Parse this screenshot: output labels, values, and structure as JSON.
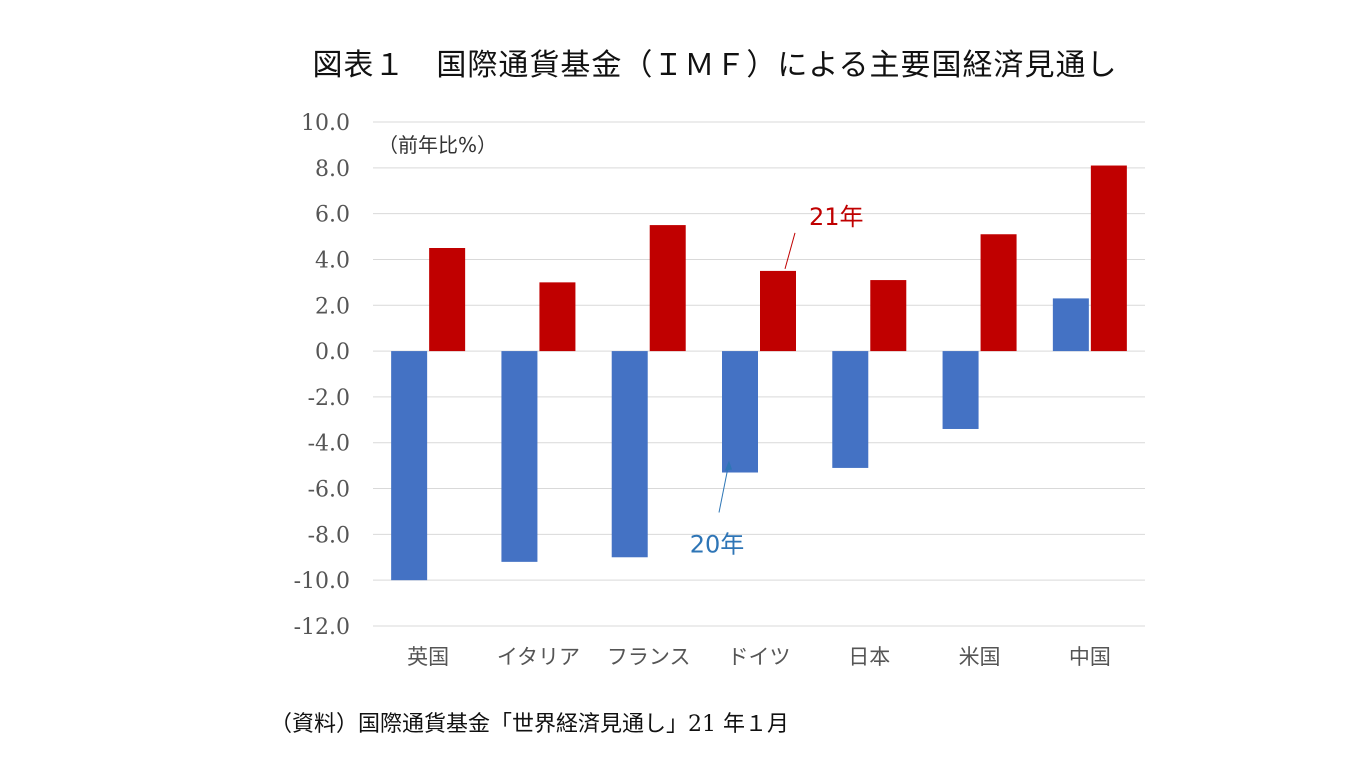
{
  "title": "図表１　国際通貨基金（ＩＭＦ）による主要国経済見通し",
  "source": "（資料）国際通貨基金「世界経済見通し」21 年１月",
  "chart_data": {
    "type": "bar",
    "unit_label": "（前年比%）",
    "categories": [
      "英国",
      "イタリア",
      "フランス",
      "ドイツ",
      "日本",
      "米国",
      "中国"
    ],
    "series": [
      {
        "name": "20年",
        "color": "#4472c4",
        "values": [
          -10.0,
          -9.2,
          -9.0,
          -5.3,
          -5.1,
          -3.4,
          2.3
        ]
      },
      {
        "name": "21年",
        "color": "#c00000",
        "values": [
          4.5,
          3.0,
          5.5,
          3.5,
          3.1,
          5.1,
          8.1
        ]
      }
    ],
    "yticks": [
      "10.0",
      "8.0",
      "6.0",
      "4.0",
      "2.0",
      "0.0",
      "-2.0",
      "-4.0",
      "-6.0",
      "-8.0",
      "-10.0",
      "-12.0"
    ],
    "ylim": [
      -12,
      10
    ],
    "grid": true,
    "annotations": [
      {
        "text": "21年",
        "series": "21年",
        "category": "ドイツ"
      },
      {
        "text": "20年",
        "series": "20年",
        "category": "ドイツ"
      }
    ]
  }
}
